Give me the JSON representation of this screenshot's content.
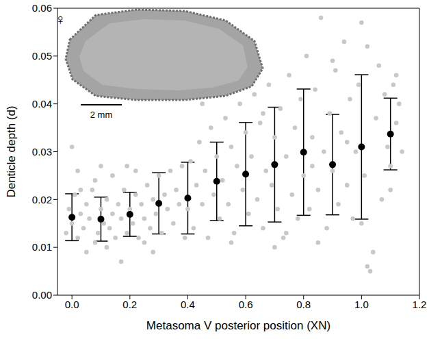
{
  "chart_data": {
    "type": "scatter",
    "x_label": "Metasoma V posterior position (XN)",
    "y_label": "Denticle depth (d)",
    "annotations": [
      "♀",
      "2 mm"
    ],
    "xlim": [
      -0.05,
      1.2
    ],
    "xticks": [
      {
        "value": 0,
        "label": "0.0"
      },
      0.2,
      0.4,
      0.6,
      0.8,
      {
        "value": 1,
        "label": "1.0"
      },
      1.2
    ],
    "ylim": [
      0,
      0.06
    ],
    "yticks": [
      {
        "value": 0,
        "label": "0.00"
      },
      0.01,
      0.02,
      0.03,
      0.04,
      0.05,
      0.06
    ],
    "grid": false,
    "series": [
      {
        "type": "scatter",
        "marker": "circle",
        "color": "#c8c8c8",
        "x": [
          -0.02,
          -0.01,
          0.0,
          0.01,
          0.02,
          0.03,
          0.0,
          0.04,
          0.05,
          0.06,
          0.07,
          0.08,
          0.09,
          0.1,
          0.11,
          0.12,
          0.13,
          0.14,
          0.15,
          0.16,
          0.17,
          0.18,
          0.19,
          0.2,
          0.21,
          0.22,
          0.23,
          0.24,
          0.25,
          0.26,
          0.27,
          0.28,
          0.29,
          0.3,
          0.31,
          0.32,
          0.33,
          0.34,
          0.35,
          0.36,
          0.37,
          0.38,
          0.39,
          0.02,
          0.08,
          0.14,
          0.19,
          0.05,
          0.12,
          0.17,
          0.25,
          0.03,
          0.1,
          0.22,
          0.28,
          0.4,
          0.41,
          0.42,
          0.43,
          0.44,
          0.45,
          0.46,
          0.47,
          0.48,
          0.49,
          0.5,
          0.51,
          0.52,
          0.53,
          0.54,
          0.55,
          0.56,
          0.57,
          0.58,
          0.59,
          0.6,
          0.61,
          0.62,
          0.63,
          0.64,
          0.65,
          0.66,
          0.67,
          0.68,
          0.69,
          0.7,
          0.71,
          0.72,
          0.73,
          0.74,
          0.75,
          0.76,
          0.77,
          0.78,
          0.79,
          0.45,
          0.55,
          0.62,
          0.7,
          0.74,
          0.66,
          0.8,
          0.81,
          0.82,
          0.83,
          0.84,
          0.85,
          0.86,
          0.87,
          0.88,
          0.89,
          0.9,
          0.91,
          0.92,
          0.93,
          0.94,
          0.95,
          0.96,
          0.97,
          0.98,
          0.99,
          1.0,
          1.01,
          1.02,
          1.03,
          1.04,
          1.05,
          1.06,
          1.07,
          1.08,
          1.09,
          1.1,
          1.11,
          1.12,
          1.13,
          1.14,
          1.1,
          1.12,
          0.85,
          0.9,
          1.0,
          1.02,
          0.95,
          0.83
        ],
        "values": [
          0.013,
          0.018,
          0.015,
          0.021,
          0.012,
          0.017,
          0.031,
          0.014,
          0.019,
          0.016,
          0.022,
          0.011,
          0.013,
          0.018,
          0.015,
          0.02,
          0.014,
          0.017,
          0.012,
          0.019,
          0.016,
          0.022,
          0.013,
          0.018,
          0.015,
          0.021,
          0.012,
          0.019,
          0.016,
          0.023,
          0.014,
          0.02,
          0.017,
          0.025,
          0.013,
          0.021,
          0.018,
          0.026,
          0.015,
          0.022,
          0.019,
          0.027,
          0.012,
          0.026,
          0.024,
          0.025,
          0.027,
          0.009,
          0.01,
          0.007,
          0.011,
          0.022,
          0.027,
          0.026,
          0.009,
          0.018,
          0.028,
          0.014,
          0.023,
          0.032,
          0.019,
          0.026,
          0.012,
          0.035,
          0.021,
          0.029,
          0.016,
          0.024,
          0.037,
          0.019,
          0.031,
          0.013,
          0.027,
          0.04,
          0.022,
          0.034,
          0.017,
          0.029,
          0.042,
          0.02,
          0.036,
          0.014,
          0.026,
          0.044,
          0.023,
          0.033,
          0.018,
          0.039,
          0.012,
          0.029,
          0.046,
          0.021,
          0.035,
          0.016,
          0.041,
          0.04,
          0.011,
          0.048,
          0.01,
          0.013,
          0.038,
          0.025,
          0.05,
          0.018,
          0.033,
          0.043,
          0.022,
          0.058,
          0.03,
          0.014,
          0.038,
          0.026,
          0.047,
          0.019,
          0.034,
          0.053,
          0.023,
          0.041,
          0.016,
          0.03,
          0.044,
          0.057,
          0.025,
          0.006,
          0.005,
          0.009,
          0.037,
          0.048,
          0.02,
          0.042,
          0.031,
          0.027,
          0.044,
          0.036,
          0.04,
          0.03,
          0.022,
          0.046,
          0.011,
          0.049,
          0.015,
          0.052,
          0.032,
          0.027
        ]
      },
      {
        "type": "scatter",
        "marker": "circle",
        "color": "#000000",
        "x": [
          0.0,
          0.1,
          0.2,
          0.3,
          0.4,
          0.5,
          0.6,
          0.7,
          0.8,
          0.9,
          1.0,
          1.1
        ],
        "values": [
          0.0163,
          0.0159,
          0.0169,
          0.0192,
          0.0203,
          0.0238,
          0.0253,
          0.0273,
          0.0299,
          0.0273,
          0.031,
          0.0337
        ],
        "error": [
          0.0049,
          0.0046,
          0.0046,
          0.0064,
          0.0075,
          0.0082,
          0.0108,
          0.012,
          0.0132,
          0.0105,
          0.0151,
          0.0075
        ]
      }
    ]
  }
}
